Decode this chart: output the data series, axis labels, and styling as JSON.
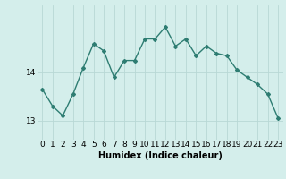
{
  "x": [
    0,
    1,
    2,
    3,
    4,
    5,
    6,
    7,
    8,
    9,
    10,
    11,
    12,
    13,
    14,
    15,
    16,
    17,
    18,
    19,
    20,
    21,
    22,
    23
  ],
  "y": [
    13.65,
    13.3,
    13.1,
    13.55,
    14.1,
    14.6,
    14.45,
    13.9,
    14.25,
    14.25,
    14.7,
    14.7,
    14.95,
    14.55,
    14.7,
    14.35,
    14.55,
    14.4,
    14.35,
    14.05,
    13.9,
    13.75,
    13.55,
    13.05
  ],
  "line_color": "#2e7d72",
  "marker": "D",
  "marker_size": 2.0,
  "bg_color": "#d4eeeb",
  "grid_color": "#b8d8d5",
  "xlabel": "Humidex (Indice chaleur)",
  "xlabel_fontsize": 7,
  "yticks": [
    13,
    14
  ],
  "xtick_labels": [
    "0",
    "1",
    "2",
    "3",
    "4",
    "5",
    "6",
    "7",
    "8",
    "9",
    "10",
    "11",
    "12",
    "13",
    "14",
    "15",
    "16",
    "17",
    "18",
    "19",
    "20",
    "21",
    "22",
    "23"
  ],
  "ylim": [
    12.6,
    15.4
  ],
  "xlim": [
    -0.5,
    23.5
  ],
  "tick_fontsize": 6.5,
  "line_width": 1.0
}
